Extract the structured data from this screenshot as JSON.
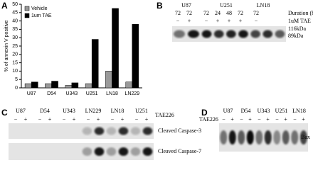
{
  "chart_data": {
    "type": "bar",
    "panel_label": "A",
    "y_label": "% of annexin V positive",
    "categories": [
      "U87",
      "D54",
      "U343",
      "U251",
      "LN18",
      "LN229"
    ],
    "series": [
      {
        "name": "Vehicle",
        "color": "#999999",
        "values": [
          2.5,
          2.5,
          1.5,
          2.5,
          10,
          3.5
        ]
      },
      {
        "name": "1um TAE",
        "color": "#000000",
        "values": [
          3.5,
          4,
          3,
          29,
          47.5,
          38
        ]
      }
    ],
    "ylim": [
      0,
      50
    ],
    "yticks": [
      0,
      5,
      10,
      15,
      20,
      25,
      30,
      35,
      40,
      45,
      50
    ],
    "legend": "top-left"
  },
  "panel_b": {
    "label": "B",
    "cell_lines": [
      "U87",
      "U251",
      "LN18"
    ],
    "duration_label": "Duration (hr)",
    "durations": [
      "72",
      "72",
      "72",
      "24",
      "48",
      "72",
      "72"
    ],
    "treatment_label": "1uM TAE",
    "signs": [
      "−",
      "+",
      "−",
      "+",
      "+",
      "+",
      "−"
    ],
    "bands": [
      "116kDa",
      "89kDa"
    ]
  },
  "panel_c": {
    "label": "C",
    "cell_lines": [
      "U87",
      "D54",
      "U343",
      "LN229",
      "LN18",
      "U251"
    ],
    "treatment_label": "TAE226",
    "signs": [
      "−",
      "+",
      "−",
      "+",
      "−",
      "+",
      "−",
      "+",
      "−",
      "+",
      "−",
      "+"
    ],
    "bands": [
      "Cleaved Caspase-3",
      "Cleaved Caspase-7"
    ]
  },
  "panel_d": {
    "label": "D",
    "cell_lines": [
      "U87",
      "D54",
      "U343",
      "U251",
      "LN18"
    ],
    "treatment_label": "TAE226",
    "signs": [
      "−",
      "+",
      "−",
      "+",
      "−",
      "+",
      "−",
      "+",
      "−",
      "+"
    ],
    "band": "Bax"
  }
}
